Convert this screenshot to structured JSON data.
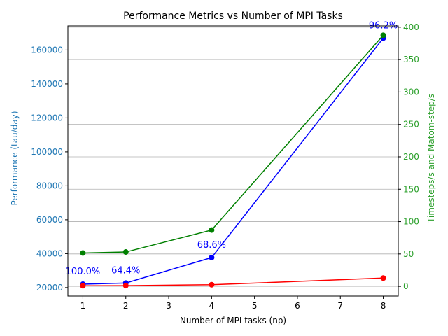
{
  "chart_data": {
    "type": "line",
    "title": "Performance Metrics vs Number of MPI Tasks",
    "xlabel": "Number of MPI tasks (np)",
    "ylabel_left": "Performance (tau/day)",
    "ylabel_right": "Timesteps/s and Matom-step/s",
    "x": [
      1,
      2,
      4,
      8
    ],
    "x_ticks": [
      1,
      2,
      3,
      4,
      5,
      6,
      7,
      8
    ],
    "xlim": [
      0.65,
      8.35
    ],
    "ylim_left": [
      15000,
      174200
    ],
    "y_ticks_left": [
      20000,
      40000,
      60000,
      80000,
      100000,
      120000,
      140000,
      160000
    ],
    "ylim_right": [
      -15,
      402
    ],
    "y_ticks_right": [
      0,
      50,
      100,
      150,
      200,
      250,
      300,
      350,
      400
    ],
    "grid": "horizontal, right axis",
    "series": [
      {
        "axis": "left",
        "color": "#0000ff",
        "values": [
          22000,
          22700,
          37700,
          167000
        ]
      },
      {
        "axis": "right",
        "color": "#ff0000",
        "values": [
          0.9,
          1.1,
          2.5,
          12.8
        ]
      },
      {
        "axis": "right",
        "color": "#008000",
        "values": [
          51.5,
          53.0,
          87.0,
          387.5
        ]
      }
    ],
    "annotations": [
      {
        "text": "100.0%",
        "x": 1,
        "y": 22000,
        "color": "#0000ff"
      },
      {
        "text": "64.4%",
        "x": 2,
        "y": 22700,
        "color": "#0000ff"
      },
      {
        "text": "68.6%",
        "x": 4,
        "y": 37700,
        "color": "#0000ff"
      },
      {
        "text": "96.2%",
        "x": 8,
        "y": 167000,
        "color": "#0000ff"
      }
    ],
    "colors": {
      "left_axis": "#1f77b4",
      "right_axis": "#2ca02c",
      "grid": "#b0b0b0"
    }
  }
}
